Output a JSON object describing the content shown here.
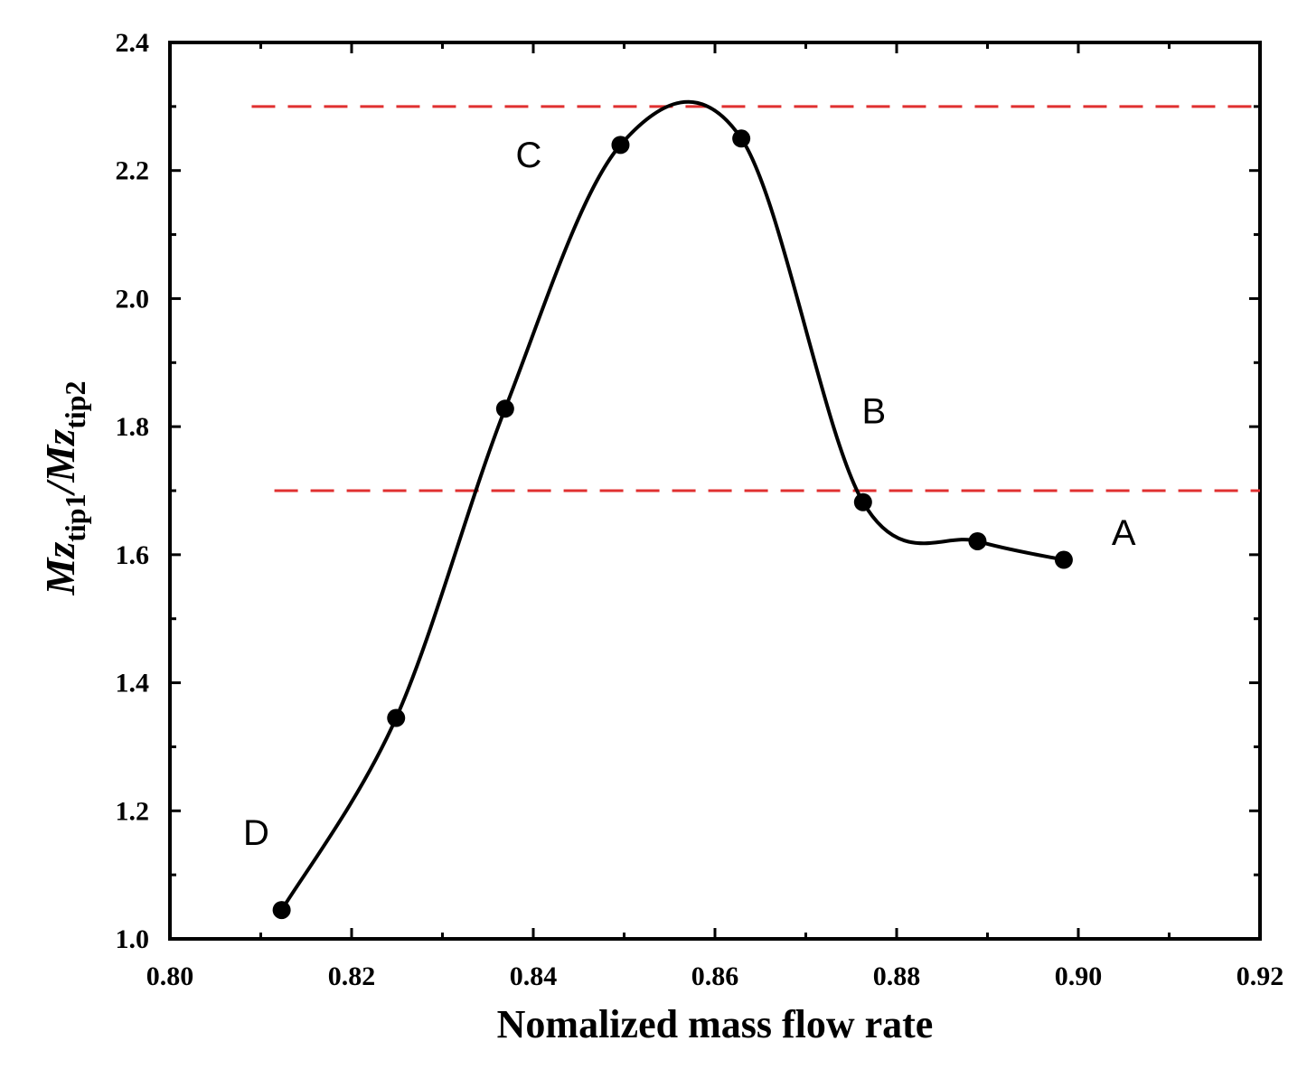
{
  "chart_data": {
    "type": "line",
    "title": "",
    "xlabel": "Nomalized mass flow rate",
    "ylabel": {
      "main1": "Mz",
      "sub1": "tip1",
      "sep": "/",
      "main2": "Mz",
      "sub2": "tip2"
    },
    "xlim": [
      0.8,
      0.92
    ],
    "ylim": [
      1.0,
      2.4
    ],
    "x_ticks": [
      "0.80",
      "0.82",
      "0.84",
      "0.86",
      "0.88",
      "0.90",
      "0.92"
    ],
    "y_ticks": [
      "1.0",
      "1.2",
      "1.4",
      "1.6",
      "1.8",
      "2.0",
      "2.2",
      "2.4"
    ],
    "series": [
      {
        "name": "Mz ratio",
        "color": "#000000",
        "x": [
          0.8123,
          0.8249,
          0.8369,
          0.8496,
          0.8629,
          0.8763,
          0.8889,
          0.8984
        ],
        "y": [
          1.045,
          1.345,
          1.828,
          2.24,
          2.25,
          1.682,
          1.621,
          1.592
        ]
      }
    ],
    "reference_lines": [
      {
        "y": 2.3,
        "x_start": 0.809,
        "color": "#e03030",
        "style": "dashed"
      },
      {
        "y": 1.7,
        "x_start": 0.8115,
        "color": "#e03030",
        "style": "dashed"
      }
    ],
    "annotations": [
      {
        "text": "A",
        "x": 0.905,
        "y": 1.615
      },
      {
        "text": "B",
        "x": 0.8775,
        "y": 1.805
      },
      {
        "text": "C",
        "x": 0.8395,
        "y": 2.205
      },
      {
        "text": "D",
        "x": 0.8095,
        "y": 1.147
      }
    ]
  }
}
